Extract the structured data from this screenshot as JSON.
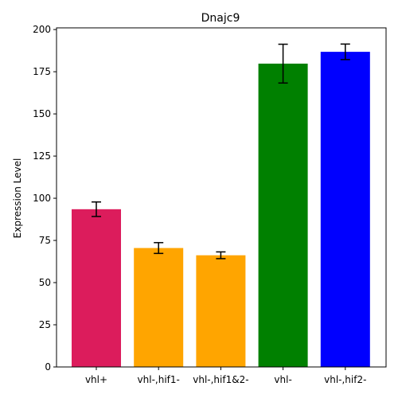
{
  "chart_data": {
    "type": "bar",
    "title": "Dnajc9",
    "xlabel": "",
    "ylabel": "Expression Level",
    "categories": [
      "vhl+",
      "vhl-,hif1-",
      "vhl-,hif1&2-",
      "vhl-",
      "vhl-,hif2-"
    ],
    "values": [
      93.5,
      70.5,
      66.2,
      179.8,
      186.8
    ],
    "errors": [
      4.3,
      3.2,
      2.0,
      11.5,
      4.6
    ],
    "colors": [
      "#dc1c5c",
      "#ffa500",
      "#ffa500",
      "#008000",
      "#0000ff"
    ],
    "ylim": [
      0,
      201
    ],
    "yticks": [
      0,
      25,
      50,
      75,
      100,
      125,
      150,
      175,
      200
    ],
    "grid": false,
    "legend": "none"
  }
}
